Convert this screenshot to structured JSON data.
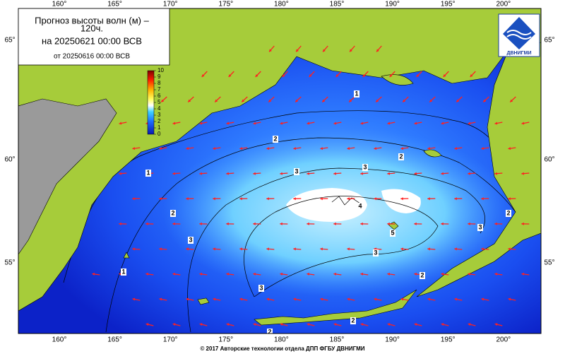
{
  "header": {
    "title": "Прогноз высоты волн (м) –",
    "lead": "120ч.",
    "valid": "на 20250621 00:00 ВСВ",
    "issued": "от 20250616 00:00 ВСВ"
  },
  "logo": "ДВНИГМИ",
  "lon_labels": [
    "160°",
    "165°",
    "170°",
    "175°",
    "180°",
    "185°",
    "190°",
    "195°",
    "200°"
  ],
  "lat_labels": [
    "65°",
    "60°",
    "55°"
  ],
  "colorbar": {
    "ticks": [
      0,
      1,
      2,
      3,
      4,
      5,
      6,
      7,
      8,
      9,
      10
    ]
  },
  "contour_labels": [
    1,
    1,
    1,
    2,
    2,
    2,
    2,
    3,
    3,
    3,
    3,
    3,
    3,
    4,
    5,
    2,
    2,
    2
  ],
  "footer": "© 2017 Авторские технологии отдела ДПП ФГБУ ДВНИГМИ"
}
